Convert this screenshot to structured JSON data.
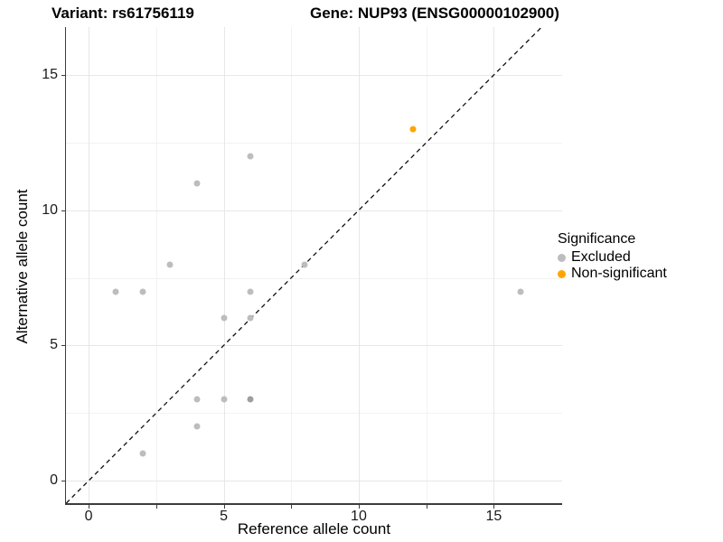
{
  "chart_data": {
    "type": "scatter",
    "titles": {
      "variant": "Variant: rs61756119",
      "gene": "Gene: NUP93 (ENSG00000102900)"
    },
    "xlabel": "Reference allele count",
    "ylabel": "Alternative allele count",
    "xlim": [
      -0.84,
      17.53
    ],
    "ylim": [
      -0.83,
      16.77
    ],
    "x_ticks": [
      {
        "v": 0,
        "label": "0"
      },
      {
        "v": 2.5,
        "label": ""
      },
      {
        "v": 5,
        "label": "5"
      },
      {
        "v": 7.5,
        "label": ""
      },
      {
        "v": 10,
        "label": "10"
      },
      {
        "v": 12.5,
        "label": ""
      },
      {
        "v": 15,
        "label": "15"
      }
    ],
    "y_ticks": [
      {
        "v": 0,
        "label": "0"
      },
      {
        "v": 5,
        "label": "5"
      },
      {
        "v": 10,
        "label": "10"
      },
      {
        "v": 15,
        "label": "15"
      }
    ],
    "grid": {
      "x_major": [
        0,
        5,
        10,
        15
      ],
      "x_minor": [
        2.5,
        7.5,
        12.5
      ],
      "y_major": [
        0,
        5,
        10,
        15
      ],
      "y_minor": [
        2.5,
        7.5,
        12.5
      ]
    },
    "identity_line": {
      "type": "y=x",
      "style": "dashed",
      "color": "#111111"
    },
    "series": [
      {
        "name": "Excluded",
        "color": "#bdbdbd",
        "points": [
          {
            "x": 1,
            "y": 7
          },
          {
            "x": 2,
            "y": 7
          },
          {
            "x": 2,
            "y": 1
          },
          {
            "x": 3,
            "y": 8
          },
          {
            "x": 4,
            "y": 11
          },
          {
            "x": 4,
            "y": 3
          },
          {
            "x": 4,
            "y": 2
          },
          {
            "x": 5,
            "y": 6
          },
          {
            "x": 5,
            "y": 3
          },
          {
            "x": 6,
            "y": 12
          },
          {
            "x": 6,
            "y": 7
          },
          {
            "x": 6,
            "y": 6
          },
          {
            "x": 6,
            "y": 3,
            "count": 2
          },
          {
            "x": 8,
            "y": 8
          },
          {
            "x": 16,
            "y": 7
          }
        ]
      },
      {
        "name": "Non-significant",
        "color": "#ffa500",
        "points": [
          {
            "x": 12,
            "y": 13
          }
        ]
      }
    ],
    "overlap_color": "#9e9e9e",
    "legend": {
      "title": "Significance",
      "position": "right"
    }
  }
}
